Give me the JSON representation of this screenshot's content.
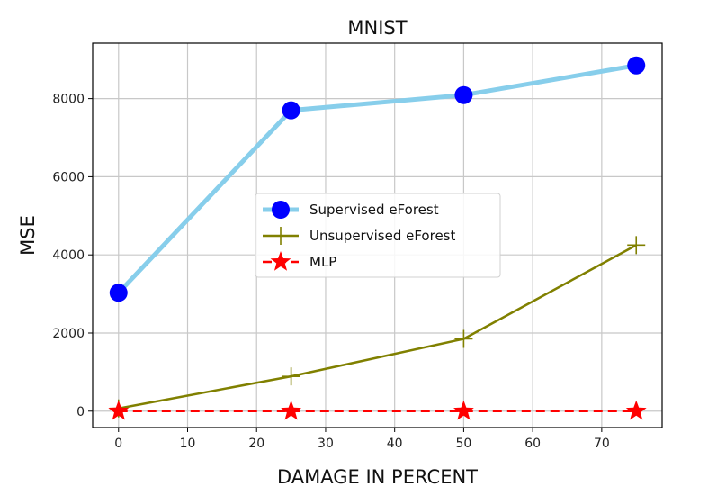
{
  "chart_data": {
    "type": "line",
    "title": "MNIST",
    "xlabel": "DAMAGE IN PERCENT",
    "ylabel": "MSE",
    "xlim": [
      -3.75,
      78.75
    ],
    "ylim": [
      -420,
      9420
    ],
    "xticks": [
      0,
      10,
      20,
      30,
      40,
      50,
      60,
      70
    ],
    "yticks": [
      0,
      2000,
      4000,
      6000,
      8000
    ],
    "grid": true,
    "legend_position": "center",
    "series": [
      {
        "name": "Supervised eForest",
        "x": [
          0,
          25,
          50,
          75
        ],
        "values": [
          3030,
          7700,
          8090,
          8850
        ],
        "color": "#87ceeb",
        "marker": "circle",
        "marker_color": "#0000ff",
        "line_style": "solid"
      },
      {
        "name": "Unsupervised eForest",
        "x": [
          0,
          25,
          50,
          75
        ],
        "values": [
          70,
          890,
          1850,
          4250
        ],
        "color": "#808000",
        "marker": "plus",
        "marker_color": "#808000",
        "line_style": "solid"
      },
      {
        "name": "MLP",
        "x": [
          0,
          25,
          50,
          75
        ],
        "values": [
          0,
          0,
          0,
          0
        ],
        "color": "#ff0000",
        "marker": "star",
        "marker_color": "#ff0000",
        "line_style": "dashed"
      }
    ]
  }
}
